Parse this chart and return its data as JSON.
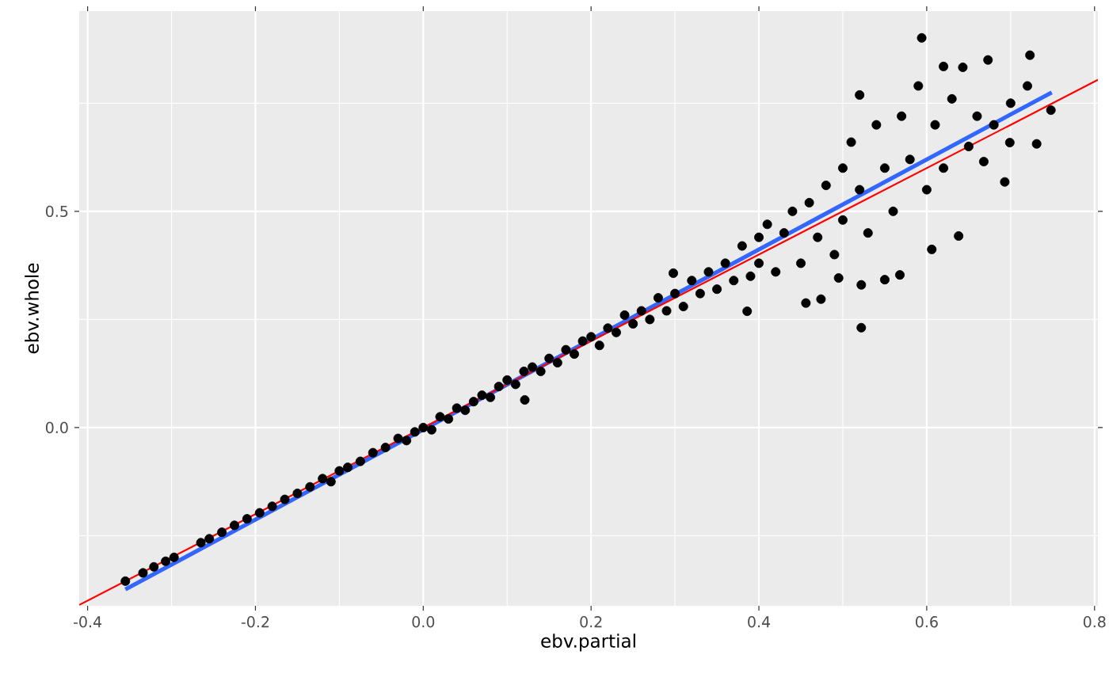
{
  "chart_data": {
    "type": "scatter",
    "xlabel": "ebv.partial",
    "ylabel": "ebv.whole",
    "xlim": [
      -0.41,
      0.804
    ],
    "ylim": [
      -0.412,
      0.963
    ],
    "xticks": [
      -0.4,
      -0.2,
      {
        "value": 0,
        "label": "0.0"
      },
      0.2,
      0.4,
      0.6,
      0.8
    ],
    "yticks": [
      {
        "value": 0,
        "label": "0.0"
      },
      0.5
    ],
    "grid": true,
    "series": [
      {
        "color": "#000000",
        "marker": "circle",
        "x": [
          -0.355,
          -0.334,
          -0.321,
          -0.307,
          -0.297,
          -0.265,
          -0.255,
          -0.24,
          -0.225,
          -0.21,
          -0.195,
          -0.18,
          -0.165,
          -0.15,
          -0.135,
          -0.12,
          -0.11,
          -0.1,
          -0.09,
          -0.075,
          -0.06,
          -0.045,
          -0.03,
          -0.02,
          -0.01,
          0.0,
          0.01,
          0.02,
          0.03,
          0.04,
          0.05,
          0.06,
          0.07,
          0.08,
          0.09,
          0.1,
          0.11,
          0.121,
          0.12,
          0.13,
          0.14,
          0.15,
          0.16,
          0.17,
          0.18,
          0.19,
          0.2,
          0.21,
          0.22,
          0.23,
          0.24,
          0.25,
          0.26,
          0.27,
          0.28,
          0.29,
          0.3,
          0.298,
          0.31,
          0.32,
          0.33,
          0.34,
          0.35,
          0.36,
          0.37,
          0.38,
          0.386,
          0.39,
          0.4,
          0.4,
          0.41,
          0.42,
          0.43,
          0.44,
          0.45,
          0.456,
          0.474,
          0.46,
          0.47,
          0.48,
          0.49,
          0.495,
          0.5,
          0.5,
          0.51,
          0.52,
          0.522,
          0.522,
          0.52,
          0.53,
          0.54,
          0.55,
          0.55,
          0.56,
          0.568,
          0.57,
          0.58,
          0.59,
          0.594,
          0.6,
          0.606,
          0.61,
          0.62,
          0.62,
          0.63,
          0.638,
          0.643,
          0.65,
          0.66,
          0.668,
          0.673,
          0.68,
          0.693,
          0.699,
          0.7,
          0.72,
          0.723,
          0.731,
          0.748
        ],
        "values": [
          -0.355,
          -0.336,
          -0.322,
          -0.309,
          -0.3,
          -0.266,
          -0.257,
          -0.242,
          -0.226,
          -0.211,
          -0.197,
          -0.182,
          -0.166,
          -0.152,
          -0.137,
          -0.118,
          -0.125,
          -0.1,
          -0.092,
          -0.078,
          -0.058,
          -0.046,
          -0.025,
          -0.03,
          -0.01,
          0.0,
          -0.005,
          0.025,
          0.02,
          0.045,
          0.04,
          0.06,
          0.075,
          0.07,
          0.095,
          0.11,
          0.1,
          0.064,
          0.13,
          0.14,
          0.13,
          0.16,
          0.15,
          0.18,
          0.17,
          0.2,
          0.21,
          0.19,
          0.23,
          0.22,
          0.26,
          0.24,
          0.27,
          0.25,
          0.3,
          0.27,
          0.31,
          0.357,
          0.28,
          0.34,
          0.31,
          0.36,
          0.32,
          0.38,
          0.34,
          0.42,
          0.269,
          0.35,
          0.44,
          0.38,
          0.47,
          0.36,
          0.45,
          0.5,
          0.38,
          0.288,
          0.297,
          0.52,
          0.44,
          0.56,
          0.4,
          0.346,
          0.6,
          0.48,
          0.66,
          0.769,
          0.33,
          0.231,
          0.55,
          0.45,
          0.7,
          0.342,
          0.6,
          0.5,
          0.353,
          0.72,
          0.62,
          0.79,
          0.901,
          0.55,
          0.412,
          0.7,
          0.835,
          0.6,
          0.76,
          0.443,
          0.833,
          0.65,
          0.72,
          0.615,
          0.85,
          0.7,
          0.568,
          0.659,
          0.75,
          0.79,
          0.861,
          0.656,
          0.734
        ]
      },
      {
        "type": "line",
        "color": "#3366ff",
        "marker": "none",
        "x": [
          -0.355,
          0.749
        ],
        "values": [
          -0.374,
          0.775
        ]
      },
      {
        "type": "line",
        "color": "#ff0000",
        "marker": "none",
        "x": [
          -0.41,
          0.804
        ],
        "values": [
          -0.41,
          0.804
        ]
      }
    ]
  }
}
